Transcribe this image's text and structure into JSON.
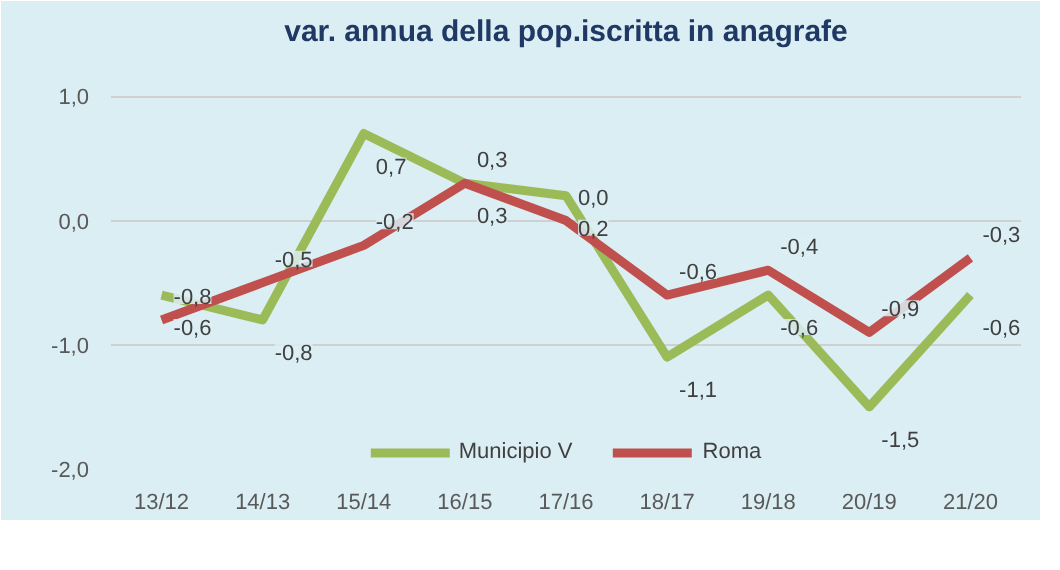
{
  "chart_data": {
    "type": "line",
    "title": "var. annua della pop.iscritta in anagrafe",
    "categories": [
      "13/12",
      "14/13",
      "15/14",
      "16/15",
      "17/16",
      "18/17",
      "19/18",
      "20/19",
      "21/20"
    ],
    "series": [
      {
        "name": "Municipio V",
        "color": "#9bbb59",
        "values": [
          -0.6,
          -0.8,
          0.7,
          0.3,
          0.2,
          -1.1,
          -0.6,
          -1.5,
          -0.6
        ],
        "value_labels": [
          "-0,6",
          "-0,8",
          "0,7",
          "0,3",
          "0,2",
          "-1,1",
          "-0,6",
          "-1,5",
          "-0,6"
        ]
      },
      {
        "name": "Roma",
        "color": "#c0504d",
        "values": [
          -0.8,
          -0.5,
          -0.2,
          0.3,
          0.0,
          -0.6,
          -0.4,
          -0.9,
          -0.3
        ],
        "value_labels": [
          "-0,8",
          "-0,5",
          "-0,2",
          "0,3",
          "0,0",
          "-0,6",
          "-0,4",
          "-0,9",
          "-0,3"
        ]
      }
    ],
    "ylim": [
      -2.0,
      1.3
    ],
    "yticks": [
      {
        "value": -2.0,
        "label": "-2,0"
      },
      {
        "value": -1.0,
        "label": "-1,0"
      },
      {
        "value": 0.0,
        "label": "0,0"
      },
      {
        "value": 1.0,
        "label": "1,0"
      }
    ],
    "grid": "y",
    "legend": "bottom",
    "marker": "none",
    "line_style": "solid"
  }
}
